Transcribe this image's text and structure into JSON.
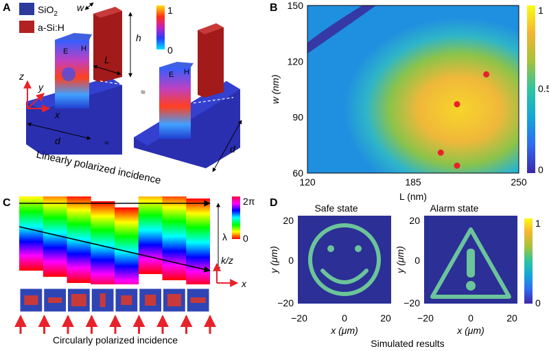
{
  "panels": {
    "a": {
      "label": "A",
      "legend": [
        {
          "name": "SiO",
          "sub": "2",
          "color": "#2b3a9c"
        },
        {
          "name": "a-Si:H",
          "sub": "",
          "color": "#b22222"
        }
      ],
      "colorbar": {
        "max": "1",
        "min": "0"
      },
      "dims": {
        "w": "w",
        "h": "h",
        "L": "L",
        "d1": "d",
        "d2": "d"
      },
      "axes": {
        "z": "z",
        "y": "y",
        "x": "x"
      },
      "field_tags": {
        "e": "E",
        "h": "H"
      },
      "break_mark": "≈",
      "caption": "Linearly polarized incidence"
    },
    "b": {
      "label": "B",
      "cb_ticks": [
        "1",
        "0.5",
        "0"
      ]
    },
    "c": {
      "label": "C",
      "cb_max": "2π",
      "cb_min": "0",
      "lambda": "λ",
      "kz": "k/z",
      "x": "x",
      "caption": "Circularly polarized incidence"
    },
    "d": {
      "label": "D",
      "safe_title": "Safe state",
      "alarm_title": "Alarm state",
      "ylabel": "y (μm)",
      "xlabel": "x (μm)",
      "ticks": [
        "−20",
        "0",
        "20"
      ],
      "cb_ticks": [
        "1",
        "0"
      ],
      "caption": "Simulated results"
    }
  },
  "chart_data": {
    "type": "heatmap",
    "title": "",
    "xlabel": "L (nm)",
    "ylabel": "w (nm)",
    "xlim": [
      120,
      250
    ],
    "ylim": [
      60,
      150
    ],
    "xticks": [
      120,
      185,
      250
    ],
    "yticks": [
      60,
      90,
      120,
      150
    ],
    "colorbar_range": [
      0,
      1
    ],
    "colormap": [
      "#3e26a8",
      "#2d6df0",
      "#14a8d8",
      "#2ec4a0",
      "#a6c23a",
      "#f5b531",
      "#f9fb15"
    ],
    "points": [
      {
        "L": 230,
        "w": 113
      },
      {
        "L": 212,
        "w": 97
      },
      {
        "L": 202,
        "w": 71
      },
      {
        "L": 212,
        "w": 64
      }
    ],
    "point_color": "#e8222b"
  }
}
